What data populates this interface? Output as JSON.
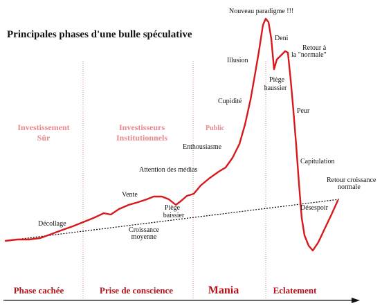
{
  "title": "Principales phases d'une bulle spéculative",
  "colors": {
    "curve": "#d7191c",
    "zone_label": "#e8898d",
    "phase_label": "#b5121b",
    "divider": "#c98a72",
    "trend": "#111111"
  },
  "zones": [
    {
      "line1": "Investissement",
      "line2": "Sûr"
    },
    {
      "line1": "Investisseurs",
      "line2": "Institutionnels"
    },
    {
      "line1": "Public",
      "line2": ""
    }
  ],
  "phases": [
    "Phase cachée",
    "Prise de conscience",
    "Mania",
    "Eclatement"
  ],
  "annotations": {
    "decollage": "Décollage",
    "vente": "Vente",
    "piege_baissier": [
      "Piège",
      "baissier"
    ],
    "croissance_moyenne": [
      "Croissance",
      "moyenne"
    ],
    "attention_medias": "Attention des médias",
    "enthousiasme": "Enthousiasme",
    "cupidite": "Cupidité",
    "illusion": "Illusion",
    "nouveau_paradigme": "Nouveau paradigme !!!",
    "deni": "Deni",
    "retour_normale": [
      "Retour  à",
      "la \"normale\""
    ],
    "piege_haussier": [
      "Piège",
      "haussier"
    ],
    "peur": "Peur",
    "capitulation": "Capitulation",
    "retour_croissance": [
      "Retour croissance",
      "normale"
    ],
    "desespoir": "Désespoir"
  }
}
